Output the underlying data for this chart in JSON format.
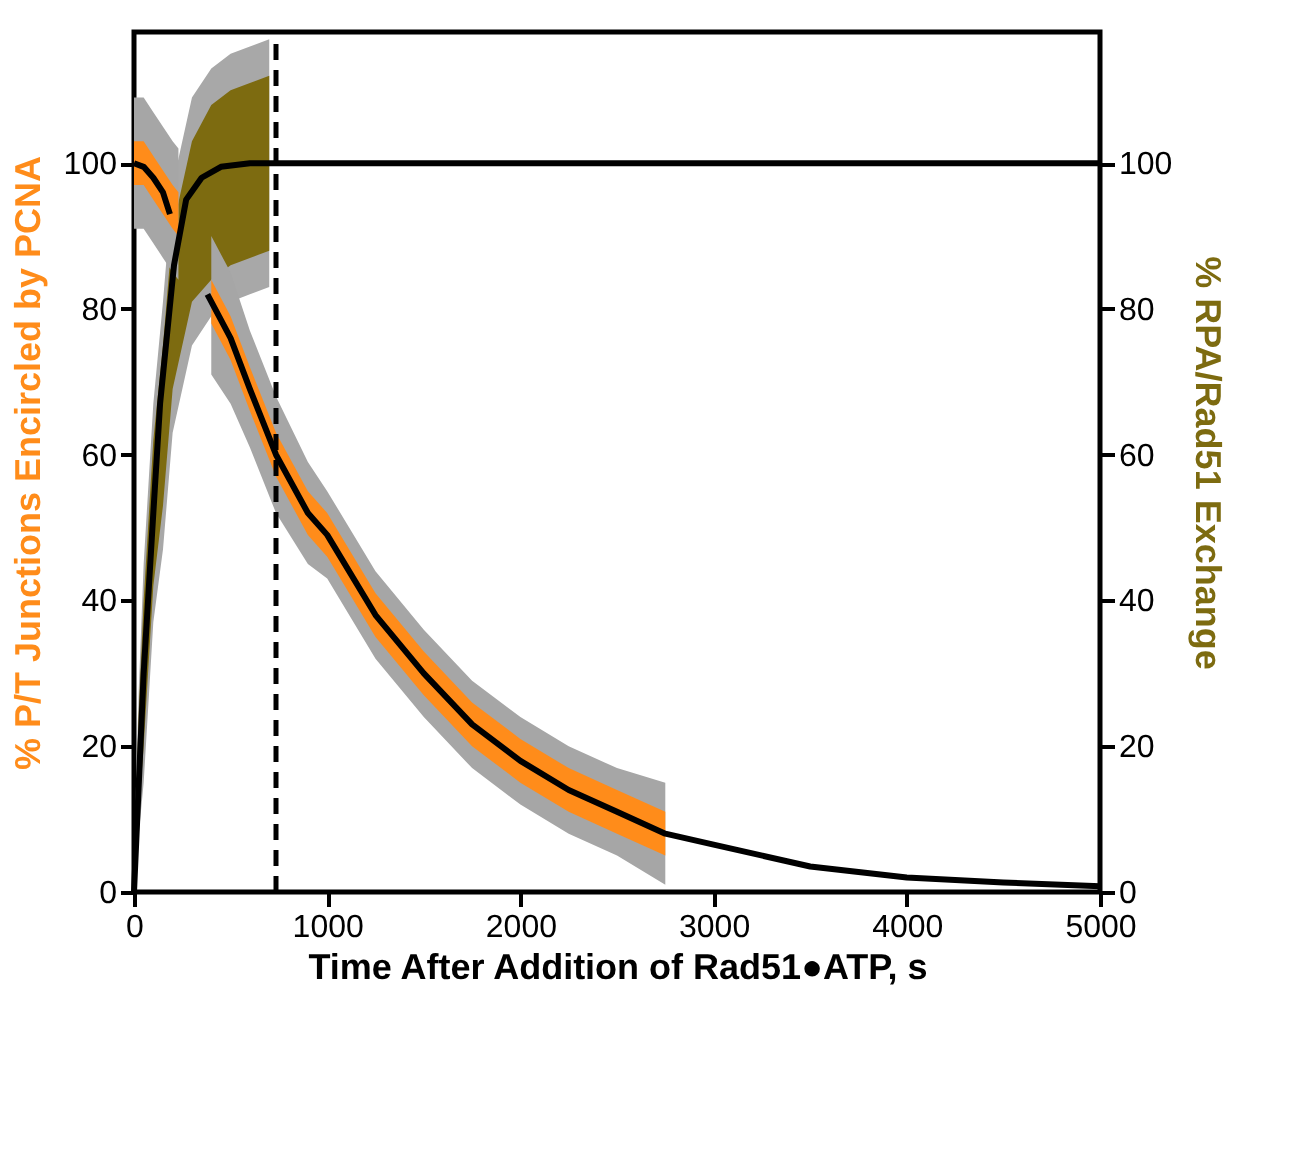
{
  "chart_data": {
    "type": "line",
    "xlabel": "Time After Addition of Rad51●ATP, s",
    "ylabel": "% P/T Junctions Encircled by PCNA",
    "y2label": "% RPA/Rad51 Exchange",
    "xlim": [
      0,
      5000
    ],
    "xticks": [
      0,
      1000,
      2000,
      3000,
      4000,
      5000
    ],
    "ylim": [
      0,
      118
    ],
    "yticks": [
      0,
      20,
      40,
      60,
      80,
      100
    ],
    "y2lim": [
      0,
      118
    ],
    "y2ticks": [
      0,
      20,
      40,
      60,
      80,
      100
    ],
    "grid": false,
    "marker": "none",
    "line_style": "solid",
    "series": [
      {
        "axis": "y",
        "color": "#a6a6a6",
        "x": [
          0,
          50,
          100,
          150,
          200,
          230,
          300,
          400,
          500,
          600,
          735,
          900,
          1000,
          1250,
          1500,
          1750,
          2000,
          2250,
          2500,
          2750
        ],
        "values": [
          null,
          null,
          null,
          null,
          null,
          null,
          null,
          null,
          null,
          null,
          null,
          null,
          null,
          null,
          null,
          null,
          null,
          null,
          null,
          null
        ],
        "lower": [
          91,
          91,
          89,
          87,
          85,
          84,
          null,
          71,
          67,
          61,
          52,
          45,
          43,
          32,
          24,
          17,
          12,
          8,
          5,
          1
        ],
        "upper": [
          109,
          109,
          107,
          105,
          103,
          102,
          null,
          90,
          85,
          77,
          68,
          59,
          55,
          44,
          36,
          29,
          24,
          20,
          17,
          15
        ]
      },
      {
        "axis": "y",
        "color": "#ff8c1a",
        "x": [
          0,
          50,
          100,
          150,
          200,
          230,
          300,
          400,
          500,
          600,
          735,
          900,
          1000,
          1250,
          1500,
          1750,
          2000,
          2250,
          2500,
          2750
        ],
        "values": [
          null,
          null,
          null,
          null,
          null,
          null,
          null,
          null,
          null,
          null,
          null,
          null,
          null,
          null,
          null,
          null,
          null,
          null,
          null,
          null
        ],
        "lower": [
          97,
          97,
          95,
          93,
          91,
          90,
          null,
          78,
          73,
          66,
          57,
          49,
          46,
          35,
          27,
          20,
          15,
          11,
          8,
          5
        ],
        "upper": [
          103,
          103,
          101,
          99,
          97,
          96,
          null,
          84,
          79,
          72,
          63,
          55,
          52,
          41,
          33,
          26,
          21,
          17,
          14,
          11
        ]
      },
      {
        "axis": "y2",
        "color": "#a8a8a8",
        "x": [
          0,
          25,
          50,
          100,
          150,
          200,
          300,
          400,
          500,
          600,
          700
        ],
        "values": [
          null,
          null,
          null,
          null,
          null,
          null,
          null,
          null,
          null,
          null,
          null
        ],
        "lower": [
          0,
          8,
          15,
          37,
          47,
          63,
          75,
          79,
          81,
          82,
          83
        ],
        "upper": [
          5,
          28,
          45,
          67,
          81,
          97,
          109,
          113,
          115,
          116,
          117
        ]
      },
      {
        "axis": "y2",
        "color": "#7d6b10",
        "x": [
          0,
          25,
          50,
          100,
          150,
          200,
          300,
          400,
          500,
          600,
          700
        ],
        "values": [
          null,
          null,
          null,
          null,
          null,
          null,
          null,
          null,
          null,
          null,
          null
        ],
        "lower": [
          0,
          11,
          20,
          42,
          53,
          69,
          81,
          84,
          86,
          87,
          88
        ],
        "upper": [
          3,
          25,
          40,
          62,
          75,
          91,
          103,
          108,
          110,
          111,
          112
        ]
      },
      {
        "axis": "y",
        "color": "#000000",
        "x": [
          0,
          50,
          100,
          150,
          186
        ],
        "values": [
          100,
          99.5,
          98,
          96,
          93
        ]
      },
      {
        "axis": "y",
        "color": "#000000",
        "x": [
          380,
          500,
          600,
          735,
          900,
          1000,
          1250,
          1500,
          1750,
          2000,
          2250,
          2500,
          2750,
          3000,
          3500,
          4000,
          4500,
          5000
        ],
        "values": [
          82,
          76,
          69,
          60,
          52,
          49,
          38,
          30,
          23,
          18,
          14,
          11,
          8,
          6.5,
          3.5,
          2,
          1.3,
          0.8
        ]
      },
      {
        "axis": "y2",
        "color": "#000000",
        "x": [
          0,
          50,
          100,
          135,
          207,
          270,
          350,
          450,
          600,
          735,
          5000
        ],
        "values": [
          0,
          30,
          52,
          67,
          86,
          95,
          98,
          99.5,
          100,
          100,
          100
        ]
      }
    ],
    "ref_lines": [
      {
        "axis": "x",
        "value": 735,
        "color": "#000000",
        "line_style": "dashed"
      }
    ]
  }
}
